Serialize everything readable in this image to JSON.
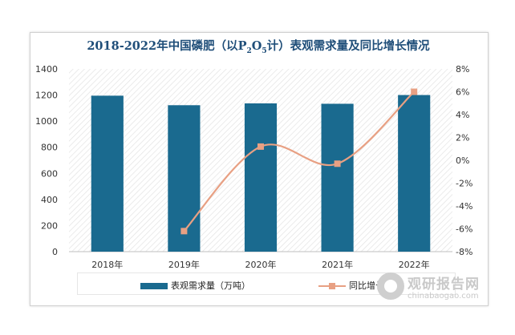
{
  "chart_data": {
    "type": "bar",
    "title_main": "2018-2022年中国磷肥（以P",
    "title_sub1": "2",
    "title_mid": "O",
    "title_sub2": "5",
    "title_end": "计）表观需求量及同比增长情况",
    "categories": [
      "2018年",
      "2019年",
      "2020年",
      "2021年",
      "2022年"
    ],
    "series": [
      {
        "name": "表观需求量（万吨）",
        "type": "bar",
        "axis": "left",
        "color": "#1a6a8f",
        "values": [
          1195,
          1122,
          1136,
          1133,
          1200
        ]
      },
      {
        "name": "同比增长",
        "type": "line",
        "axis": "right",
        "color": "#e8a083",
        "values": [
          null,
          -6.2,
          1.2,
          -0.3,
          6.0
        ]
      }
    ],
    "y_left": {
      "min": 0,
      "max": 1400,
      "step": 200,
      "ticks": [
        "0",
        "200",
        "400",
        "600",
        "800",
        "1000",
        "1200",
        "1400"
      ]
    },
    "y_right": {
      "min": -8,
      "max": 8,
      "step": 2,
      "ticks": [
        "-8%",
        "-6%",
        "-4%",
        "-2%",
        "0%",
        "2%",
        "4%",
        "6%",
        "8%"
      ]
    },
    "grid": false,
    "legend_position": "bottom"
  },
  "watermark": {
    "text_cn": "观研报告网",
    "text_en": "chinabaogao.com",
    "icon": "watermark-logo-icon"
  }
}
